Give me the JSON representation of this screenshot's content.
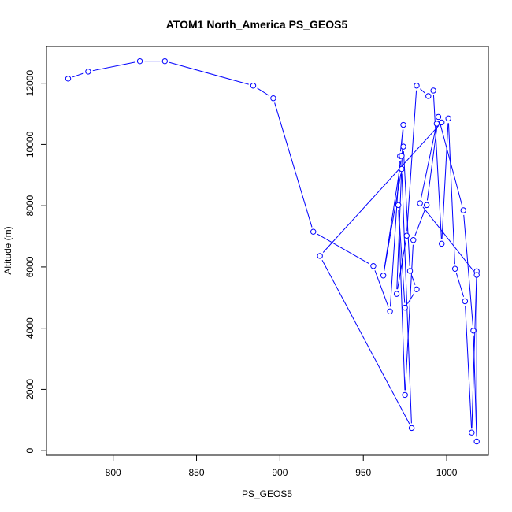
{
  "chart_data": {
    "type": "line",
    "title": "ATOM1 North_America PS_GEOS5",
    "xlabel": "PS_GEOS5",
    "ylabel": "Altitude (m)",
    "xlim": [
      760,
      1025
    ],
    "ylim": [
      -150,
      13200
    ],
    "x_ticks": [
      800,
      850,
      900,
      950,
      1000
    ],
    "y_ticks": [
      0,
      2000,
      4000,
      6000,
      8000,
      10000,
      12000
    ],
    "grid": false,
    "line_color": "#0000ff",
    "marker": "open-circle",
    "series": [
      {
        "x": [
          773,
          785,
          816,
          831,
          884,
          896,
          920,
          956,
          966,
          972,
          974,
          970,
          976,
          982,
          989,
          992,
          997,
          1001,
          1005,
          1011,
          1015,
          1018,
          1018,
          1016,
          1010,
          995,
          988,
          980,
          975,
          971,
          975,
          982,
          978,
          974,
          973,
          962,
          973,
          979,
          924,
          997,
          994,
          984,
          1018
        ],
        "y": [
          12150,
          12380,
          12720,
          12720,
          11920,
          11510,
          7150,
          6030,
          4550,
          9620,
          10640,
          5120,
          7020,
          11920,
          11580,
          11760,
          6760,
          10850,
          5940,
          4880,
          590,
          5860,
          300,
          3920,
          7850,
          10900,
          8020,
          6880,
          1820,
          8020,
          4670,
          5270,
          5870,
          9930,
          9630,
          5720,
          9200,
          740,
          6360,
          10720,
          10680,
          8080,
          5740
        ]
      }
    ]
  }
}
